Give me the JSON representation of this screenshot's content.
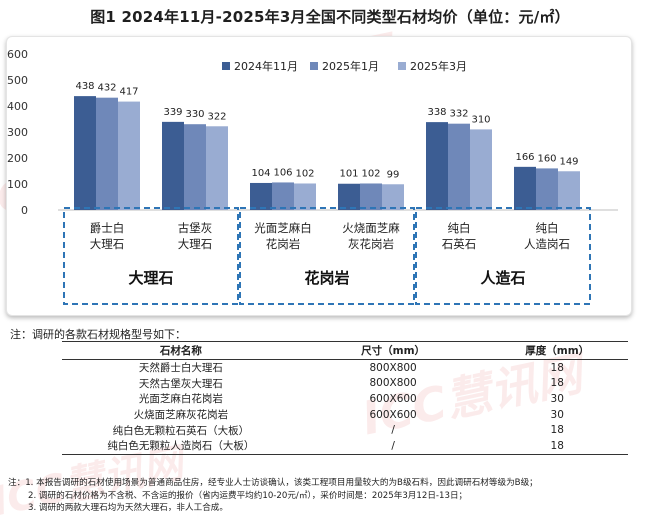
{
  "title": "图1  2024年11月-2025年3月全国不同类型石材均价（单位：元/㎡）",
  "chart_data": {
    "type": "bar",
    "categories": [
      "爵士白\n大理石",
      "古堡灰\n大理石",
      "光面芝麻白\n花岗岩",
      "火烧面芝麻\n灰花岗岩",
      "纯白\n石英石",
      "纯白\n人造岗石"
    ],
    "series": [
      {
        "name": "2024年11月",
        "values": [
          438,
          339,
          104,
          101,
          338,
          166
        ],
        "color": "#3c5d93"
      },
      {
        "name": "2025年1月",
        "values": [
          432,
          330,
          106,
          102,
          332,
          160
        ],
        "color": "#6f88b9"
      },
      {
        "name": "2025年3月",
        "values": [
          417,
          322,
          102,
          99,
          310,
          149
        ],
        "color": "#99acd2"
      }
    ],
    "ylim": [
      0,
      600
    ],
    "yticks": [
      0,
      100,
      200,
      300,
      400,
      500,
      600
    ],
    "groups": [
      "大理石",
      "花岗岩",
      "人造石"
    ],
    "legend_position": "top-right",
    "grid": false,
    "group_box_color": "#2e75b6"
  },
  "note": "注：调研的各款石材规格型号如下：",
  "table": {
    "headers": [
      "石材名称",
      "尺寸（mm）",
      "厚度（mm）"
    ],
    "rows": [
      [
        "天然爵士白大理石",
        "800X800",
        "18"
      ],
      [
        "天然古堡灰大理石",
        "800X800",
        "18"
      ],
      [
        "光面芝麻白花岗岩",
        "600X600",
        "30"
      ],
      [
        "火烧面芝麻灰花岗岩",
        "600X600",
        "30"
      ],
      [
        "纯白色无颗粒石英石（大板）",
        "/",
        "18"
      ],
      [
        "纯白色无颗粒人造岗石（大板）",
        "/",
        "18"
      ]
    ]
  },
  "footnotes": [
    "注：1. 本报告调研的石材使用场景为普通商品住房，经专业人士访谈确认，该类工程项目用量较大的为B级石料，因此调研石材等级为B级；",
    "2. 调研的石材价格为不含税、不含运的报价（省内运费平均约10-20元/㎡），采价时间是：2025年3月12日-13日；",
    "3. 调研的两款大理石均为天然大理石，非人工合成。"
  ],
  "watermark": "ICC慧讯网"
}
